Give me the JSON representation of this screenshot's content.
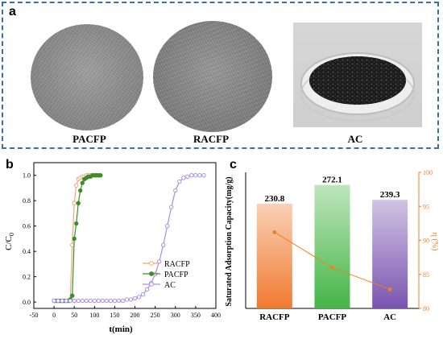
{
  "panel_a": {
    "letter": "a",
    "labels": {
      "pacfp": "PACFP",
      "racfp": "RACFP",
      "ac": "AC"
    }
  },
  "panel_b": {
    "letter": "b",
    "ylabel_main": "C/C",
    "ylabel_sub": "0",
    "xlabel": "t(min)"
  },
  "panel_c": {
    "letter": "c",
    "ylabel_left": "Saturated Adsorption Capacity(mg/g)",
    "ylabel_right": "η (%)"
  },
  "colors": {
    "frame": "#3a6ea8",
    "racfp": "#f0a878",
    "pacfp": "#3c8c2a",
    "ac": "#a98fe0",
    "bar_racfp": "#f07a30",
    "bar_pacfp": "#45b545",
    "bar_ac": "#7a55b0",
    "eta_line": "#f08020"
  },
  "chart_data": [
    {
      "type": "line",
      "xlabel": "t(min)",
      "ylabel": "C/C0",
      "xlim": [
        -50,
        400
      ],
      "ylim": [
        -0.05,
        1.1
      ],
      "xticks": [
        -50,
        0,
        50,
        100,
        150,
        200,
        250,
        300,
        350,
        400
      ],
      "yticks": [
        0.0,
        0.2,
        0.4,
        0.6,
        0.8,
        1.0
      ],
      "legend": "bottom-right",
      "series": [
        {
          "name": "RACFP",
          "color": "#f0a878",
          "marker": "circle-open",
          "x": [
            0,
            5,
            10,
            15,
            20,
            25,
            30,
            35,
            40,
            45,
            50,
            55,
            60,
            65,
            70,
            75,
            80,
            85,
            90,
            95,
            100,
            105,
            110
          ],
          "y": [
            0.01,
            0.01,
            0.01,
            0.01,
            0.01,
            0.01,
            0.01,
            0.01,
            0.02,
            0.45,
            0.78,
            0.92,
            0.97,
            0.98,
            0.99,
            0.99,
            1.0,
            1.0,
            1.0,
            1.0,
            1.0,
            1.0,
            1.0
          ]
        },
        {
          "name": "PACFP",
          "color": "#3c8c2a",
          "marker": "circle-filled",
          "x": [
            0,
            5,
            10,
            15,
            20,
            25,
            30,
            35,
            40,
            45,
            50,
            55,
            60,
            65,
            70,
            75,
            80,
            85,
            90,
            95,
            100,
            105,
            110,
            115
          ],
          "y": [
            0.01,
            0.01,
            0.01,
            0.01,
            0.01,
            0.01,
            0.01,
            0.01,
            0.02,
            0.05,
            0.5,
            0.62,
            0.78,
            0.88,
            0.94,
            0.97,
            0.98,
            0.99,
            0.99,
            1.0,
            1.0,
            1.0,
            1.0,
            1.0
          ]
        },
        {
          "name": "AC",
          "color": "#a98fe0",
          "marker": "circle-open",
          "x": [
            0,
            10,
            20,
            30,
            40,
            50,
            60,
            70,
            80,
            90,
            100,
            110,
            120,
            130,
            140,
            150,
            160,
            170,
            180,
            190,
            200,
            210,
            220,
            230,
            240,
            250,
            260,
            270,
            280,
            290,
            300,
            310,
            320,
            330,
            340,
            350,
            360,
            370
          ],
          "y": [
            0.01,
            0.01,
            0.01,
            0.01,
            0.01,
            0.01,
            0.01,
            0.01,
            0.01,
            0.01,
            0.01,
            0.01,
            0.01,
            0.01,
            0.01,
            0.01,
            0.01,
            0.01,
            0.02,
            0.02,
            0.03,
            0.04,
            0.06,
            0.1,
            0.15,
            0.22,
            0.32,
            0.45,
            0.6,
            0.75,
            0.88,
            0.95,
            0.98,
            0.99,
            1.0,
            1.0,
            1.0,
            1.0
          ]
        }
      ]
    },
    {
      "type": "bar",
      "categories": [
        "RACFP",
        "PACFP",
        "AC"
      ],
      "values": [
        230.8,
        272.1,
        239.3
      ],
      "value_labels": [
        "230.8",
        "272.1",
        "239.3"
      ],
      "ylabel": "Saturated Adsorption Capacity(mg/g)",
      "ylim": [
        0,
        300
      ],
      "secondary": {
        "type": "line",
        "ylabel": "η (%)",
        "ylim": [
          80,
          100
        ],
        "yticks": [
          80,
          85,
          90,
          95,
          100
        ],
        "values": [
          91.2,
          86.0,
          82.8
        ],
        "color": "#f08020"
      }
    }
  ]
}
